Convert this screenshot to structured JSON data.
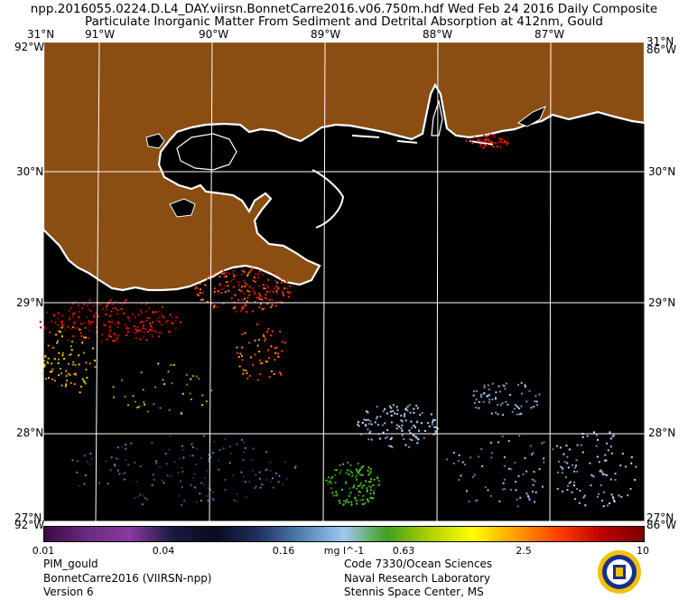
{
  "header": {
    "line1": "npp.2016055.0224.D.L4_DAY.viirsn.BonnetCarre2016.v06.750m.hdf    Wed Feb 24 2016 Daily Composite",
    "line2": "Particulate Inorganic Matter From Sediment and Detrital Absorption at 412nm, Gould"
  },
  "map": {
    "lon_labels": [
      "91°W",
      "90°W",
      "89°W",
      "88°W",
      "87°W"
    ],
    "lat_labels": [
      "31°N",
      "30°N",
      "29°N",
      "28°N"
    ],
    "corner_labels": {
      "top_left": "31°N",
      "top_left_lon": "92°W",
      "top_right_lat": "31°N",
      "top_right_lon": "86°W",
      "bottom_left_lat": "27°N",
      "bottom_left_lon": "92°W",
      "bottom_right_lat": "27°N",
      "bottom_right_lon": "86°W"
    },
    "colors": {
      "land": "#8a4d12",
      "water": "#000000",
      "grid": "#ffffff",
      "coast": "#ffffff"
    }
  },
  "colorbar": {
    "ticks": [
      "0.01",
      "0.04",
      "0.16",
      "0.63",
      "2.5",
      "10"
    ],
    "units": "mg l^-1",
    "stops": [
      "#3a0a45",
      "#6a2a80",
      "#8a3aa0",
      "#1a1a40",
      "#0a0a20",
      "#203060",
      "#5080b0",
      "#a0c8f0",
      "#40a020",
      "#b0d000",
      "#ffff00",
      "#ffa000",
      "#ff4000",
      "#c00000",
      "#7a0000"
    ]
  },
  "footer": {
    "left": [
      "PIM_gould",
      "BonnetCarre2016 (VIIRSN-npp)",
      "Version 6"
    ],
    "right": [
      "Code 7330/Ocean Sciences",
      "Naval Research Laboratory",
      "Stennis Space Center, MS"
    ]
  },
  "seal_icon": "navy-seal-icon"
}
